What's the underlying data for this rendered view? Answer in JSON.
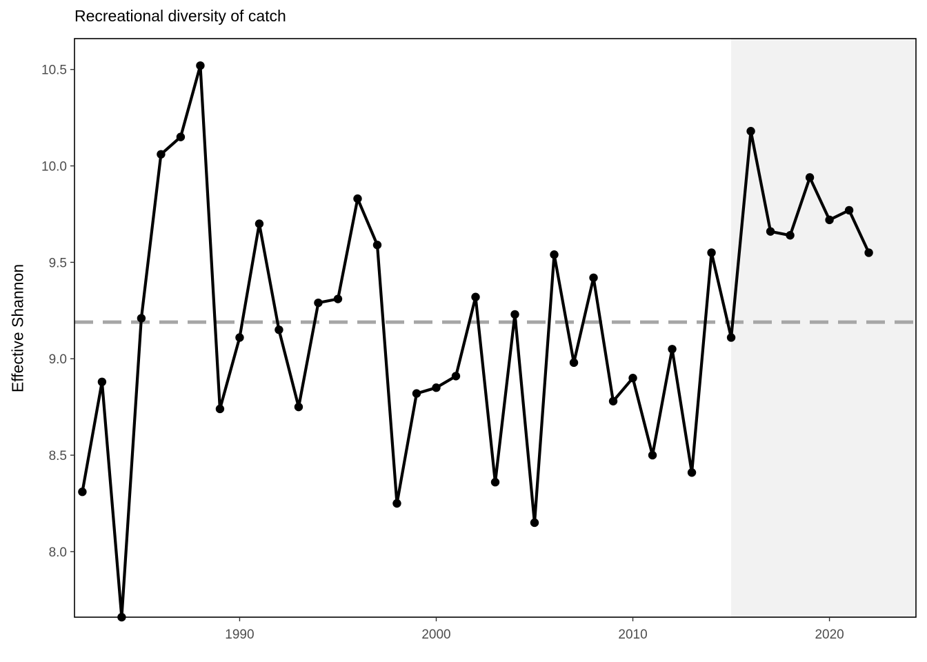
{
  "chart_data": {
    "type": "line",
    "title": "Recreational diversity of catch",
    "xlabel": "",
    "ylabel": "Effective Shannon",
    "xlim": [
      1981.6,
      2024.4
    ],
    "ylim": [
      7.66,
      10.66
    ],
    "x_ticks": [
      1990,
      2000,
      2010,
      2020
    ],
    "y_ticks": [
      "8.0",
      "8.5",
      "9.0",
      "9.5",
      "10.0",
      "10.5"
    ],
    "reference_line": {
      "y": 9.19,
      "style": "dashed",
      "color": "#a6a6a6"
    },
    "shaded_region": {
      "x_start": 2015,
      "x_end": 2024.4,
      "color": "#f2f2f2"
    },
    "grid": false,
    "series": [
      {
        "color": "#000000",
        "x": [
          1982,
          1983,
          1984,
          1985,
          1986,
          1987,
          1988,
          1989,
          1990,
          1991,
          1992,
          1993,
          1994,
          1995,
          1996,
          1997,
          1998,
          1999,
          2000,
          2001,
          2002,
          2003,
          2004,
          2005,
          2006,
          2007,
          2008,
          2009,
          2010,
          2011,
          2012,
          2013,
          2014,
          2015,
          2016,
          2017,
          2018,
          2019,
          2020,
          2021,
          2022
        ],
        "values": [
          8.31,
          8.88,
          7.66,
          9.21,
          10.06,
          10.15,
          10.52,
          8.74,
          9.11,
          9.7,
          9.15,
          8.75,
          9.29,
          9.31,
          9.83,
          9.59,
          8.25,
          8.82,
          8.85,
          8.91,
          9.32,
          8.36,
          9.23,
          8.15,
          9.54,
          8.98,
          9.42,
          8.78,
          8.9,
          8.5,
          9.05,
          8.41,
          9.55,
          9.11,
          10.18,
          9.66,
          9.64,
          9.94,
          9.72,
          9.77,
          9.55
        ]
      }
    ]
  }
}
